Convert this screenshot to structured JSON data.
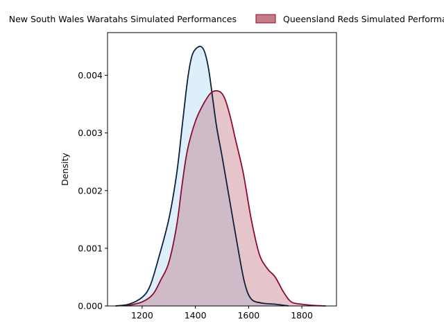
{
  "chart_data": {
    "type": "area",
    "title": "",
    "xlabel": "",
    "ylabel": "Density",
    "xlim": [
      1070,
      1930
    ],
    "ylim": [
      0,
      0.00474
    ],
    "x_ticks": [
      1200,
      1400,
      1600,
      1800
    ],
    "y_ticks": [
      0,
      0.001,
      0.002,
      0.003,
      0.004
    ],
    "x_tick_labels": [
      "1200",
      "1400",
      "1600",
      "1800"
    ],
    "y_tick_labels": [
      "0.000",
      "0.001",
      "0.002",
      "0.003",
      "0.004"
    ],
    "grid": false,
    "legend": "top",
    "series": [
      {
        "name": "New South Wales Waratahs Simulated Performances",
        "line_color": "#0b1f3a",
        "fill_color": "#cde6fb",
        "fill_opacity": 0.65,
        "points": [
          [
            1100,
            0.0
          ],
          [
            1150,
            3e-05
          ],
          [
            1200,
            0.00015
          ],
          [
            1230,
            0.00035
          ],
          [
            1260,
            0.0008
          ],
          [
            1300,
            0.0015
          ],
          [
            1330,
            0.0023
          ],
          [
            1350,
            0.0031
          ],
          [
            1370,
            0.0039
          ],
          [
            1385,
            0.0043
          ],
          [
            1400,
            0.00445
          ],
          [
            1420,
            0.0045
          ],
          [
            1435,
            0.0044
          ],
          [
            1450,
            0.0041
          ],
          [
            1465,
            0.0036
          ],
          [
            1480,
            0.0031
          ],
          [
            1500,
            0.0026
          ],
          [
            1530,
            0.0018
          ],
          [
            1560,
            0.001
          ],
          [
            1585,
            0.0004
          ],
          [
            1610,
            0.00012
          ],
          [
            1650,
            5e-05
          ],
          [
            1700,
            3e-05
          ],
          [
            1750,
            0.0
          ]
        ]
      },
      {
        "name": "Queensland Reds Simulated Performances",
        "line_color": "#8b0a2e",
        "fill_color": "#b0505f",
        "fill_opacity": 0.33,
        "points": [
          [
            1140,
            0.0
          ],
          [
            1200,
            7e-05
          ],
          [
            1240,
            0.0002
          ],
          [
            1270,
            0.00045
          ],
          [
            1300,
            0.00075
          ],
          [
            1330,
            0.0014
          ],
          [
            1350,
            0.0021
          ],
          [
            1370,
            0.0027
          ],
          [
            1400,
            0.0032
          ],
          [
            1430,
            0.0035
          ],
          [
            1460,
            0.0037
          ],
          [
            1490,
            0.00372
          ],
          [
            1510,
            0.0036
          ],
          [
            1530,
            0.0033
          ],
          [
            1550,
            0.0029
          ],
          [
            1580,
            0.0023
          ],
          [
            1610,
            0.0015
          ],
          [
            1640,
            0.0009
          ],
          [
            1670,
            0.00065
          ],
          [
            1700,
            0.0005
          ],
          [
            1730,
            0.00025
          ],
          [
            1760,
            7e-05
          ],
          [
            1800,
            3e-05
          ],
          [
            1840,
            1e-05
          ],
          [
            1890,
            0.0
          ]
        ]
      }
    ]
  }
}
